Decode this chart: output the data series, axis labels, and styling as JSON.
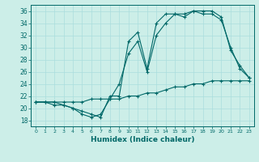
{
  "xlabel": "Humidex (Indice chaleur)",
  "bg_color": "#cceee8",
  "line_color": "#006868",
  "grid_color": "#aadddd",
  "xlim": [
    -0.5,
    23.5
  ],
  "ylim": [
    17,
    37
  ],
  "xticks": [
    0,
    1,
    2,
    3,
    4,
    5,
    6,
    7,
    8,
    9,
    10,
    11,
    12,
    13,
    14,
    15,
    16,
    17,
    18,
    19,
    20,
    21,
    22,
    23
  ],
  "yticks": [
    18,
    20,
    22,
    24,
    26,
    28,
    30,
    32,
    34,
    36
  ],
  "line1_x": [
    0,
    1,
    2,
    3,
    4,
    5,
    6,
    7,
    8,
    9,
    10,
    11,
    12,
    13,
    14,
    15,
    16,
    17,
    18,
    19,
    20,
    21,
    22,
    23
  ],
  "line1_y": [
    21.0,
    21.0,
    20.5,
    20.5,
    20.0,
    19.0,
    18.5,
    19.0,
    21.5,
    24.0,
    29.0,
    31.0,
    26.0,
    32.0,
    34.0,
    35.5,
    35.0,
    36.0,
    35.5,
    35.5,
    34.5,
    30.0,
    26.5,
    25.0
  ],
  "line2_x": [
    0,
    1,
    2,
    3,
    4,
    5,
    6,
    7,
    8,
    9,
    10,
    11,
    12,
    13,
    14,
    15,
    16,
    17,
    18,
    19,
    20,
    21,
    22,
    23
  ],
  "line2_y": [
    21.0,
    21.0,
    21.0,
    20.5,
    20.0,
    19.5,
    19.0,
    18.5,
    22.0,
    22.0,
    31.0,
    32.5,
    26.5,
    34.0,
    35.5,
    35.5,
    35.5,
    36.0,
    36.0,
    36.0,
    35.0,
    29.5,
    27.0,
    25.0
  ],
  "line3_x": [
    0,
    1,
    2,
    3,
    4,
    5,
    6,
    7,
    8,
    9,
    10,
    11,
    12,
    13,
    14,
    15,
    16,
    17,
    18,
    19,
    20,
    21,
    22,
    23
  ],
  "line3_y": [
    21.0,
    21.0,
    21.0,
    21.0,
    21.0,
    21.0,
    21.5,
    21.5,
    21.5,
    21.5,
    22.0,
    22.0,
    22.5,
    22.5,
    23.0,
    23.5,
    23.5,
    24.0,
    24.0,
    24.5,
    24.5,
    24.5,
    24.5,
    24.5
  ]
}
